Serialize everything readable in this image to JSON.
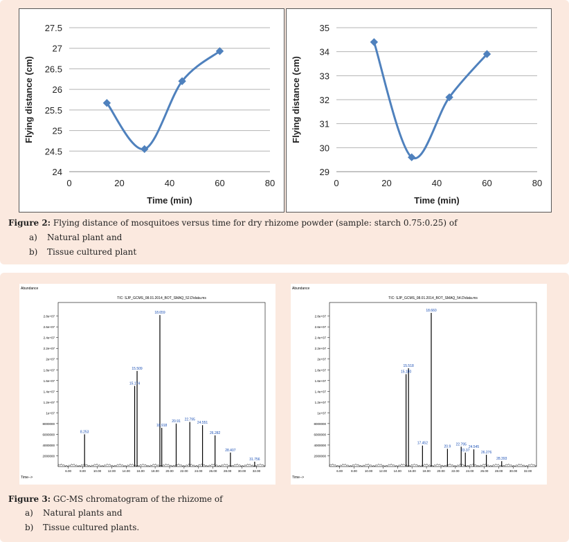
{
  "fig2": {
    "caption_label": "Figure 2:",
    "caption_text": " Flying distance of mosquitoes versus time for dry rhizome powder (sample: starch 0.75:0.25) of",
    "items": [
      "a)",
      "Natural plant and",
      "b)",
      "Tissue cultured plant"
    ]
  },
  "fig3": {
    "caption_label": "Figure 3:",
    "caption_text": " GC-MS chromatogram of the rhizome of",
    "items": [
      "a)",
      "Natural plants and",
      "b)",
      "Tissue cultured plants."
    ]
  },
  "chart_data": [
    {
      "type": "line",
      "xlabel": "Time (min)",
      "ylabel": "Flying distance (cm)",
      "xlim": [
        0,
        80
      ],
      "ylim": [
        24,
        27.5
      ],
      "xticks": [
        "0",
        "20",
        "40",
        "60",
        "80"
      ],
      "yticks": [
        "24",
        "24.5",
        "25",
        "25.5",
        "26",
        "26.5",
        "27",
        "27.5"
      ],
      "x": [
        15,
        30,
        45,
        60
      ],
      "y": [
        25.67,
        24.55,
        26.2,
        26.93
      ],
      "grid": true,
      "smooth": true,
      "color": "#4f81bd"
    },
    {
      "type": "line",
      "xlabel": "Time (min)",
      "ylabel": "Flying distance (cm)",
      "xlim": [
        0,
        80
      ],
      "ylim": [
        29,
        35
      ],
      "xticks": [
        "0",
        "20",
        "40",
        "60",
        "80"
      ],
      "yticks": [
        "29",
        "30",
        "31",
        "32",
        "33",
        "34",
        "35"
      ],
      "x": [
        15,
        30,
        45,
        60
      ],
      "y": [
        34.4,
        29.6,
        32.1,
        33.9
      ],
      "grid": true,
      "smooth": true,
      "color": "#4f81bd"
    }
  ],
  "gcms": [
    {
      "title": "TIC: SJP_GCMS_08.01.2014_BOT_SMAQ_52.D\\data.ms",
      "ylabel": "Abundance",
      "xlabel": "Time-->",
      "yticks": [
        "2.8e+07",
        "2.6e+07",
        "2.4e+07",
        "2.2e+07",
        "2e+07",
        "1.8e+07",
        "1.6e+07",
        "1.4e+07",
        "1.2e+07",
        "1e+07",
        "8000000",
        "6000000",
        "4000000",
        "2000000"
      ],
      "xticks": [
        "6.00",
        "8.00",
        "10.00",
        "12.00",
        "14.00",
        "16.00",
        "18.00",
        "20.00",
        "22.00",
        "24.00",
        "26.00",
        "28.00",
        "30.00",
        "32.00"
      ],
      "peaks": [
        {
          "t": 18.659,
          "a": 28.2,
          "label": "18.659"
        },
        {
          "t": 15.509,
          "a": 17.8,
          "label": "15.509"
        },
        {
          "t": 15.174,
          "a": 15.0,
          "label": "15.174"
        },
        {
          "t": 18.918,
          "a": 7.2,
          "label": "18.918"
        },
        {
          "t": 20.91,
          "a": 8.0,
          "label": "20.91"
        },
        {
          "t": 22.795,
          "a": 8.3,
          "label": "22.795"
        },
        {
          "t": 24.551,
          "a": 7.7,
          "label": "24.551"
        },
        {
          "t": 26.282,
          "a": 5.8,
          "label": "26.282"
        },
        {
          "t": 28.407,
          "a": 2.6,
          "label": "28.407"
        },
        {
          "t": 31.756,
          "a": 0.9,
          "label": "31.756"
        },
        {
          "t": 8.253,
          "a": 6.0,
          "label": "8.253"
        }
      ]
    },
    {
      "title": "TIC: SJP_GCMS_08.01.2014_BOT_SMAQ_54.D\\data.ms",
      "ylabel": "Abundance",
      "xlabel": "Time-->",
      "yticks": [
        "2.8e+07",
        "2.6e+07",
        "2.4e+07",
        "2.2e+07",
        "2e+07",
        "1.8e+07",
        "1.6e+07",
        "1.4e+07",
        "1.2e+07",
        "1e+07",
        "8000000",
        "6000000",
        "4000000",
        "2000000"
      ],
      "xticks": [
        "6.00",
        "8.00",
        "10.00",
        "12.00",
        "14.00",
        "16.00",
        "18.00",
        "20.00",
        "22.00",
        "24.00",
        "26.00",
        "28.00",
        "30.00",
        "32.00"
      ],
      "peaks": [
        {
          "t": 18.66,
          "a": 28.6,
          "label": "18.660"
        },
        {
          "t": 15.518,
          "a": 18.3,
          "label": "15.518"
        },
        {
          "t": 15.18,
          "a": 17.2,
          "label": "15.180"
        },
        {
          "t": 17.452,
          "a": 3.9,
          "label": "17.452"
        },
        {
          "t": 20.9,
          "a": 3.3,
          "label": "20.9"
        },
        {
          "t": 22.795,
          "a": 3.7,
          "label": "22.795"
        },
        {
          "t": 23.37,
          "a": 2.6,
          "label": "23.37"
        },
        {
          "t": 24.545,
          "a": 3.2,
          "label": "24.545"
        },
        {
          "t": 26.276,
          "a": 2.2,
          "label": "26.276"
        },
        {
          "t": 28.393,
          "a": 1.0,
          "label": "28.393"
        }
      ]
    }
  ]
}
